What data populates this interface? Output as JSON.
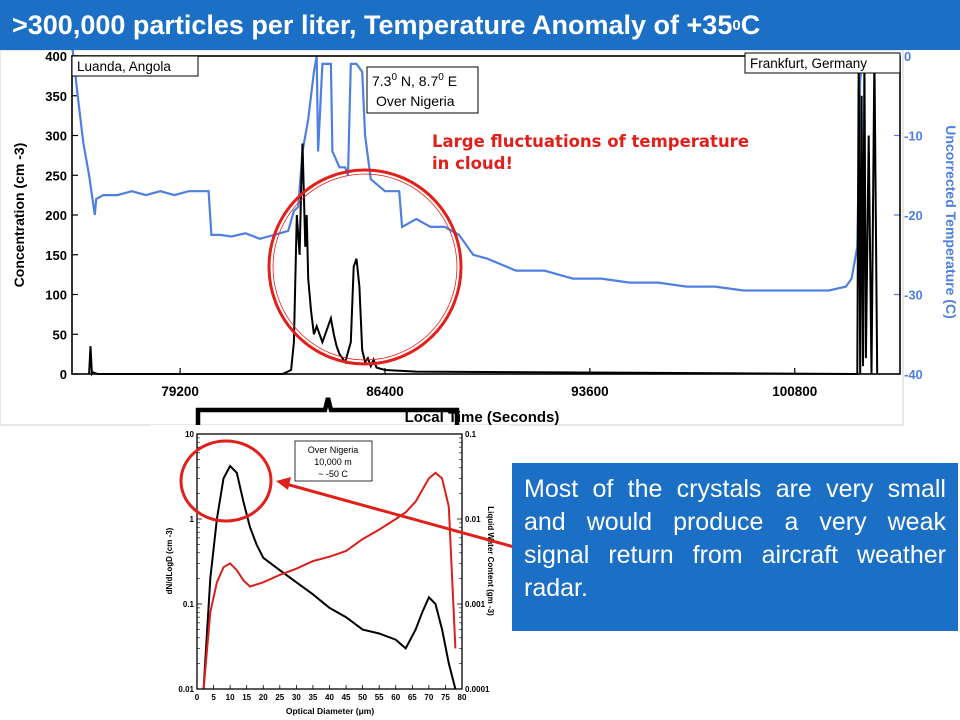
{
  "header": {
    "title_main": ">300,000 particles per liter, Temperature Anomaly of +35",
    "title_sup": "0",
    "title_end": " C"
  },
  "annotations": {
    "fluctuation_note_line1": "Large fluctuations of temperature",
    "fluctuation_note_line2": "in cloud!",
    "callout_text": "Most of the crystals are very small and would produce a very weak signal return from aircraft weather radar."
  },
  "colors": {
    "title_bg": "#1b6fc4",
    "temperature_series": "#4f80e0",
    "concentration_series": "#000000",
    "highlight_circle": "#e0201b",
    "liquid_water_series": "#d9201b"
  },
  "chart_data": [
    {
      "type": "line",
      "title": "",
      "xlabel": "Local Time (Seconds)",
      "ylabel_left": "Concentration (cm -3)",
      "ylabel_right": "Uncorrected Temperature (C)",
      "xlim": [
        75400,
        104500
      ],
      "ylim_left": [
        0,
        400
      ],
      "ylim_right": [
        -40,
        0
      ],
      "xticks": [
        79200,
        86400,
        93600,
        100800
      ],
      "yticks_left": [
        0,
        50,
        100,
        150,
        200,
        250,
        300,
        350,
        400
      ],
      "yticks_right": [
        0,
        -10,
        -20,
        -30,
        -40
      ],
      "labels": {
        "start": "Luanda, Angola",
        "end": "Frankfurt, Germany",
        "coords_line1": "7.3",
        "coords_line1_sup_a": "0",
        "coords_line1_mid": " N, 8.7",
        "coords_line1_sup_b": "0",
        "coords_line1_end": " E",
        "coords_line2": "Over Nigeria"
      },
      "series": [
        {
          "name": "Uncorrected Temperature",
          "axis": "right",
          "x": [
            75400,
            75600,
            75800,
            76000,
            76200,
            76250,
            76500,
            77000,
            77500,
            78000,
            78500,
            79000,
            79500,
            80200,
            80300,
            80600,
            81000,
            81500,
            82000,
            82500,
            83000,
            83200,
            83350,
            83500,
            83700,
            83900,
            84000,
            84050,
            84200,
            84500,
            84550,
            84800,
            85000,
            85100,
            85200,
            85400,
            85600,
            85700,
            85900,
            86400,
            86900,
            87000,
            87500,
            88000,
            88500,
            89000,
            89500,
            90000,
            91000,
            92000,
            93000,
            94000,
            95000,
            96000,
            97000,
            98000,
            99000,
            100000,
            101000,
            102000,
            102600,
            102800,
            103000,
            103100,
            103200
          ],
          "y": [
            1.5,
            -5,
            -11,
            -15,
            -20,
            -18,
            -17.5,
            -17.5,
            -17,
            -17.5,
            -17,
            -17.5,
            -17,
            -17,
            -22.5,
            -22.5,
            -22.7,
            -22.3,
            -23,
            -22.5,
            -22,
            -19.5,
            -19,
            -12,
            -8,
            -2,
            0,
            -12,
            -1,
            -1,
            -12,
            -14,
            -14,
            -15,
            -1,
            -1,
            -2,
            -10,
            -15.5,
            -17,
            -17,
            -21.5,
            -20.5,
            -21.5,
            -21.5,
            -22.5,
            -25,
            -25.5,
            -27,
            -27,
            -28,
            -28,
            -28.5,
            -28.5,
            -29,
            -29,
            -29.5,
            -29.5,
            -29.5,
            -29.5,
            -29,
            -28,
            -24,
            -3,
            0
          ]
        },
        {
          "name": "Concentration",
          "axis": "left",
          "x": [
            76000,
            76050,
            76100,
            76150,
            76300,
            82800,
            83100,
            83200,
            83300,
            83400,
            83450,
            83500,
            83600,
            83650,
            83700,
            83800,
            83900,
            84000,
            84200,
            84500,
            84600,
            84700,
            84800,
            84900,
            85000,
            85200,
            85300,
            85400,
            85500,
            85600,
            85700,
            85800,
            85900,
            86000,
            86100,
            86400,
            87500,
            103000,
            103050,
            103100,
            103150,
            103200,
            103250,
            103300,
            103400,
            103500,
            103600,
            103700
          ],
          "y": [
            0,
            35,
            0,
            2,
            0,
            0,
            5,
            40,
            200,
            150,
            230,
            290,
            160,
            200,
            120,
            80,
            50,
            60,
            40,
            70,
            50,
            35,
            25,
            20,
            15,
            40,
            135,
            145,
            110,
            30,
            15,
            20,
            10,
            18,
            8,
            5,
            3,
            0,
            400,
            0,
            350,
            10,
            400,
            20,
            300,
            0,
            400,
            0
          ]
        }
      ]
    },
    {
      "type": "line",
      "title": "",
      "xlabel": "Optical Diameter (μm)",
      "ylabel_left": "dN/dLogD (cm -3)",
      "ylabel_right": "Liquid Water Content (gm -3)",
      "xlim": [
        0,
        80
      ],
      "ylim_left": [
        0.01,
        10
      ],
      "ylim_right": [
        0.0001,
        0.1
      ],
      "log_y": true,
      "xticks": [
        0,
        5,
        10,
        15,
        20,
        25,
        30,
        35,
        40,
        45,
        50,
        55,
        60,
        65,
        70,
        75,
        80
      ],
      "yticks_left": [
        "10",
        "1",
        "0.1",
        "0.01"
      ],
      "yticks_right": [
        "0.1",
        "0.01",
        "0.001",
        "0.0001"
      ],
      "legend_box": {
        "line1": "Over Nigeria",
        "line2": "10,000 m",
        "line3": "~ -50 C"
      },
      "series": [
        {
          "name": "dN/dLogD",
          "axis": "left",
          "x": [
            2,
            4,
            6,
            8,
            10,
            12,
            14,
            16,
            18,
            20,
            25,
            30,
            35,
            40,
            45,
            50,
            55,
            60,
            63,
            66,
            68,
            70,
            72,
            74,
            76,
            78
          ],
          "y": [
            0.01,
            0.2,
            1.0,
            3.0,
            4.2,
            3.5,
            1.6,
            0.8,
            0.5,
            0.35,
            0.25,
            0.18,
            0.13,
            0.09,
            0.07,
            0.05,
            0.045,
            0.038,
            0.03,
            0.05,
            0.08,
            0.12,
            0.1,
            0.05,
            0.02,
            0.008
          ]
        },
        {
          "name": "Liquid Water Content",
          "axis": "right",
          "x": [
            2,
            4,
            6,
            8,
            10,
            12,
            14,
            16,
            18,
            20,
            25,
            30,
            35,
            40,
            45,
            50,
            55,
            60,
            63,
            66,
            68,
            70,
            72,
            74,
            76,
            78
          ],
          "y": [
            0.0001,
            0.0008,
            0.0018,
            0.0027,
            0.003,
            0.0025,
            0.0019,
            0.0016,
            0.0017,
            0.0018,
            0.0022,
            0.0026,
            0.0032,
            0.0036,
            0.0042,
            0.0058,
            0.0075,
            0.01,
            0.012,
            0.016,
            0.022,
            0.03,
            0.035,
            0.03,
            0.014,
            0.0003
          ]
        }
      ]
    }
  ]
}
